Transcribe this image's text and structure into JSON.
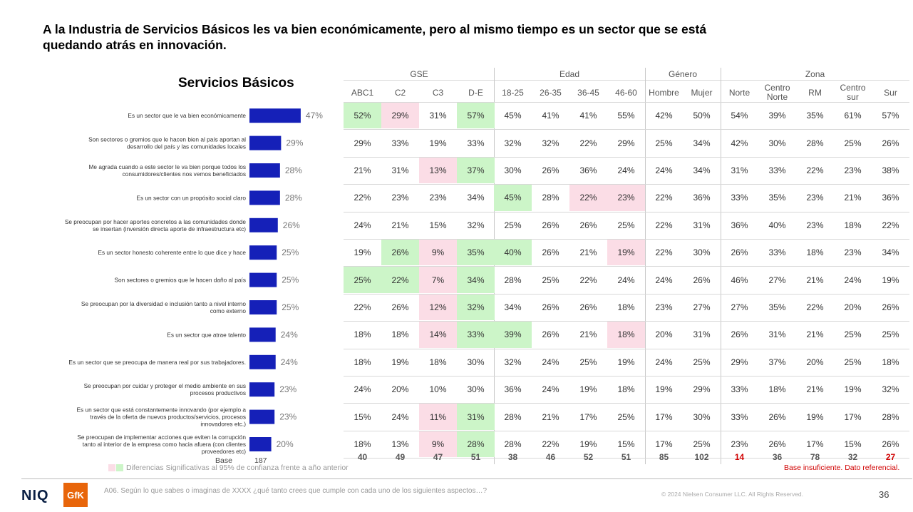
{
  "headline": "A la Industria de Servicios Básicos les va bien económicamente, pero al mismo tiempo es un sector que se está quedando atrás en innovación.",
  "chart_title": "Servicios Básicos",
  "colors": {
    "bar": "#1520b8",
    "sig_up": "#ccf5c8",
    "sig_down": "#fbdde6",
    "warning": "#d00000"
  },
  "chart_data": {
    "type": "bar",
    "orientation": "horizontal",
    "title": "Servicios Básicos",
    "categories": [
      "Es un sector que le va bien económicamente",
      "Son sectores o gremios que le hacen bien al país aportan al desarrollo del país y las comunidades locales",
      "Me agrada cuando a este sector le va bien porque todos los consumidores/clientes nos vemos beneficiados",
      "Es un sector con un propósito social claro",
      "Se preocupan por hacer aportes concretos a las comunidades donde se insertan (inversión directa aporte de infraestructura etc)",
      "Es un sector honesto coherente entre lo que dice y hace",
      "Son sectores o gremios que le hacen daño al país",
      "Se preocupan por la diversidad e inclusión tanto a nivel interno como externo",
      "Es un sector que atrae talento",
      "Es un sector que se preocupa de manera real por sus trabajadores.",
      "Se preocupan por cuidar y proteger el medio ambiente en sus procesos productivos",
      "Es un sector que está constantemente innovando (por ejemplo a través de la oferta de nuevos productos/servicios, procesos innovadores etc.)",
      "Se preocupan de implementar acciones que eviten la corrupción tanto al interior de la empresa como hacia afuera (con clientes proveedores etc)"
    ],
    "labels": [
      "47%",
      "29%",
      "28%",
      "28%",
      "26%",
      "25%",
      "25%",
      "25%",
      "24%",
      "24%",
      "23%",
      "23%",
      "20%"
    ],
    "values": [
      47,
      29,
      28,
      28,
      26,
      25,
      25,
      25,
      24,
      24,
      23,
      23,
      20
    ],
    "base_label": "Base",
    "base_value": "187"
  },
  "table": {
    "groups": [
      {
        "label": "GSE",
        "span": 4
      },
      {
        "label": "Edad",
        "span": 4
      },
      {
        "label": "Género",
        "span": 2
      },
      {
        "label": "Zona",
        "span": 5
      }
    ],
    "columns": [
      "ABC1",
      "C2",
      "C3",
      "D-E",
      "18-25",
      "26-35",
      "36-45",
      "46-60",
      "Hombre",
      "Mujer",
      "Norte",
      "Centro Norte",
      "RM",
      "Centro sur",
      "Sur"
    ],
    "rows": [
      [
        "52%",
        "29%",
        "31%",
        "57%",
        "45%",
        "41%",
        "41%",
        "55%",
        "42%",
        "50%",
        "54%",
        "39%",
        "35%",
        "61%",
        "57%"
      ],
      [
        "29%",
        "33%",
        "19%",
        "33%",
        "32%",
        "32%",
        "22%",
        "29%",
        "25%",
        "34%",
        "42%",
        "30%",
        "28%",
        "25%",
        "26%"
      ],
      [
        "21%",
        "31%",
        "13%",
        "37%",
        "30%",
        "26%",
        "36%",
        "24%",
        "24%",
        "34%",
        "31%",
        "33%",
        "22%",
        "23%",
        "38%"
      ],
      [
        "22%",
        "23%",
        "23%",
        "34%",
        "45%",
        "28%",
        "22%",
        "23%",
        "22%",
        "36%",
        "33%",
        "35%",
        "23%",
        "21%",
        "36%"
      ],
      [
        "24%",
        "21%",
        "15%",
        "32%",
        "25%",
        "26%",
        "26%",
        "25%",
        "22%",
        "31%",
        "36%",
        "40%",
        "23%",
        "18%",
        "22%"
      ],
      [
        "19%",
        "26%",
        "9%",
        "35%",
        "40%",
        "26%",
        "21%",
        "19%",
        "22%",
        "30%",
        "26%",
        "33%",
        "18%",
        "23%",
        "34%"
      ],
      [
        "25%",
        "22%",
        "7%",
        "34%",
        "28%",
        "25%",
        "22%",
        "24%",
        "24%",
        "26%",
        "46%",
        "27%",
        "21%",
        "24%",
        "19%"
      ],
      [
        "22%",
        "26%",
        "12%",
        "32%",
        "34%",
        "26%",
        "26%",
        "18%",
        "23%",
        "27%",
        "27%",
        "35%",
        "22%",
        "20%",
        "26%"
      ],
      [
        "18%",
        "18%",
        "14%",
        "33%",
        "39%",
        "26%",
        "21%",
        "18%",
        "20%",
        "31%",
        "26%",
        "31%",
        "21%",
        "25%",
        "25%"
      ],
      [
        "18%",
        "19%",
        "18%",
        "30%",
        "32%",
        "24%",
        "25%",
        "19%",
        "24%",
        "25%",
        "29%",
        "37%",
        "20%",
        "25%",
        "18%"
      ],
      [
        "24%",
        "20%",
        "10%",
        "30%",
        "36%",
        "24%",
        "19%",
        "18%",
        "19%",
        "29%",
        "33%",
        "18%",
        "21%",
        "19%",
        "32%"
      ],
      [
        "15%",
        "24%",
        "11%",
        "31%",
        "28%",
        "21%",
        "17%",
        "25%",
        "17%",
        "30%",
        "33%",
        "26%",
        "19%",
        "17%",
        "28%"
      ],
      [
        "18%",
        "13%",
        "9%",
        "28%",
        "28%",
        "22%",
        "19%",
        "15%",
        "17%",
        "25%",
        "23%",
        "26%",
        "17%",
        "15%",
        "26%"
      ]
    ],
    "highlights": [
      [
        "g",
        "p",
        "",
        "g",
        "",
        "",
        "",
        "",
        "",
        "",
        "",
        "",
        "",
        "",
        ""
      ],
      [
        "",
        "",
        "",
        "",
        "",
        "",
        "",
        "",
        "",
        "",
        "",
        "",
        "",
        "",
        ""
      ],
      [
        "",
        "",
        "p",
        "g",
        "",
        "",
        "",
        "",
        "",
        "",
        "",
        "",
        "",
        "",
        ""
      ],
      [
        "",
        "",
        "",
        "",
        "g",
        "",
        "p",
        "p",
        "",
        "",
        "",
        "",
        "",
        "",
        ""
      ],
      [
        "",
        "",
        "",
        "",
        "",
        "",
        "",
        "",
        "",
        "",
        "",
        "",
        "",
        "",
        ""
      ],
      [
        "",
        "g",
        "p",
        "g",
        "g",
        "",
        "",
        "p",
        "",
        "",
        "",
        "",
        "",
        "",
        ""
      ],
      [
        "g",
        "g",
        "p",
        "g",
        "",
        "",
        "",
        "",
        "",
        "",
        "",
        "",
        "",
        "",
        ""
      ],
      [
        "",
        "",
        "p",
        "g",
        "",
        "",
        "",
        "",
        "",
        "",
        "",
        "",
        "",
        "",
        ""
      ],
      [
        "",
        "",
        "p",
        "g",
        "g",
        "",
        "",
        "p",
        "",
        "",
        "",
        "",
        "",
        "",
        ""
      ],
      [
        "",
        "",
        "",
        "",
        "",
        "",
        "",
        "",
        "",
        "",
        "",
        "",
        "",
        "",
        ""
      ],
      [
        "",
        "",
        "",
        "",
        "",
        "",
        "",
        "",
        "",
        "",
        "",
        "",
        "",
        "",
        ""
      ],
      [
        "",
        "",
        "p",
        "g",
        "",
        "",
        "",
        "",
        "",
        "",
        "",
        "",
        "",
        "",
        ""
      ],
      [
        "",
        "",
        "p",
        "g",
        "",
        "",
        "",
        "",
        "",
        "",
        "",
        "",
        "",
        "",
        ""
      ]
    ],
    "bases": [
      "40",
      "49",
      "47",
      "51",
      "38",
      "46",
      "52",
      "51",
      "85",
      "102",
      "14",
      "36",
      "78",
      "32",
      "27"
    ],
    "base_red": [
      false,
      false,
      false,
      false,
      false,
      false,
      false,
      false,
      false,
      false,
      true,
      false,
      false,
      false,
      true
    ]
  },
  "legend_text": "Diferencias Significativas al 95% de confianza frente a año anterior",
  "warning_text": "Base insuficiente. Dato referencial.",
  "question_text": "A06. Según lo que sabes o imaginas de XXXX ¿qué tanto crees que cumple con cada uno de los siguientes aspectos…?",
  "copyright": "© 2024 Nielsen Consumer LLC. All Rights Reserved.",
  "page_number": "36",
  "logo_niq": "NIQ",
  "logo_gfk": "GfK"
}
